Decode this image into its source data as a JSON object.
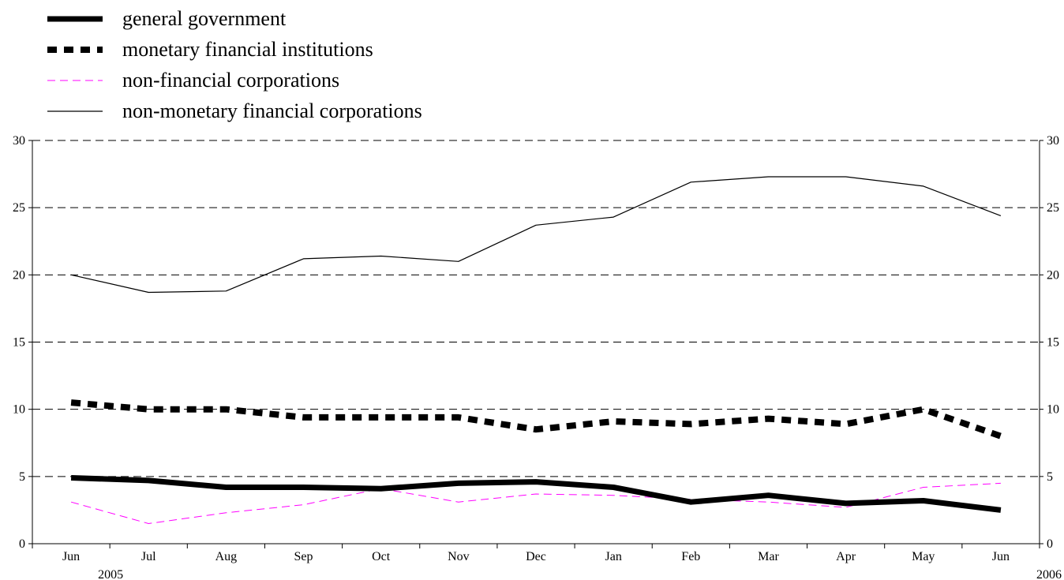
{
  "chart_data": {
    "type": "line",
    "categories": [
      "Jun",
      "Jul",
      "Aug",
      "Sep",
      "Oct",
      "Nov",
      "Dec",
      "Jan",
      "Feb",
      "Mar",
      "Apr",
      "May",
      "Jun"
    ],
    "year_labels": [
      "2005",
      "2006"
    ],
    "ylim": [
      0,
      30
    ],
    "yticks": [
      0,
      5,
      10,
      15,
      20,
      25,
      30
    ],
    "grid": "horizontal dashed",
    "legend_position": "top-left",
    "series": [
      {
        "name": "general government",
        "style": "thick-solid",
        "color": "#000000",
        "values": [
          4.9,
          4.7,
          4.2,
          4.2,
          4.1,
          4.5,
          4.6,
          4.2,
          3.1,
          3.6,
          3.0,
          3.2,
          2.5
        ]
      },
      {
        "name": "monetary financial institutions",
        "style": "thick-dotted",
        "color": "#000000",
        "values": [
          10.5,
          10.0,
          10.0,
          9.4,
          9.4,
          9.4,
          8.5,
          9.1,
          8.9,
          9.3,
          8.9,
          10.0,
          8.0
        ]
      },
      {
        "name": "non-financial corporations",
        "style": "thin-dashed",
        "color": "#ff00ff",
        "values": [
          3.1,
          1.5,
          2.3,
          2.9,
          4.1,
          3.1,
          3.7,
          3.6,
          3.3,
          3.1,
          2.7,
          4.2,
          4.5
        ]
      },
      {
        "name": "non-monetary financial corporations",
        "style": "thin-solid",
        "color": "#000000",
        "values": [
          20.0,
          18.7,
          18.8,
          21.2,
          21.4,
          21.0,
          23.7,
          24.3,
          26.9,
          27.3,
          27.3,
          26.6,
          24.4
        ]
      }
    ]
  }
}
